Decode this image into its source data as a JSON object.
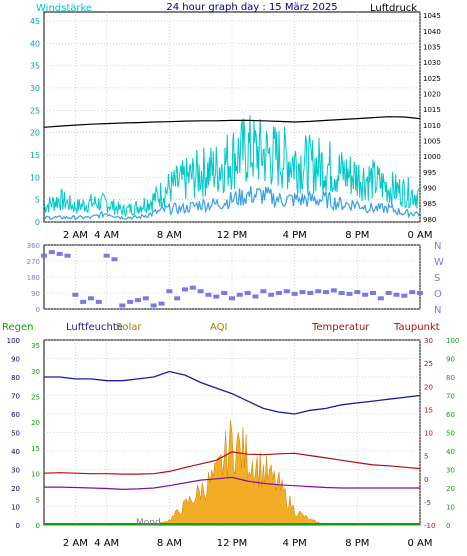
{
  "header": {
    "left_label": "Windstärke",
    "title": "24 hour graph day : 15 März 2025",
    "right_label": "Luftdruck"
  },
  "time_axis": {
    "labels": [
      "2 AM",
      "4 AM",
      "8 AM",
      "12 PM",
      "4 PM",
      "8 PM",
      "0 AM"
    ],
    "hours": [
      2,
      4,
      8,
      12,
      16,
      20,
      24
    ]
  },
  "colors": {
    "wind": "#00c8c8",
    "wind_avg": "#3aa0e8",
    "pressure": "#000000",
    "direction": "#7a7ae6",
    "humidity": "#1a1aa0",
    "temperature": "#b01010",
    "dewpoint": "#8010a0",
    "solar": "#f0a000",
    "rain": "#10a010",
    "aqi": "#a08000",
    "uv": "#708070",
    "grid": "#bbbbbb"
  },
  "legend": {
    "regen": "Regen",
    "luftfeuchte": "Luftfeuchte",
    "solar": "Solar",
    "aqi": "AQI",
    "temperatur": "Temperatur",
    "taupunkt": "Taupunkt",
    "moon": "Mond"
  },
  "chart_data": [
    {
      "type": "line",
      "name_ref": "wind-pressure",
      "y_left": {
        "label": "Windstärke",
        "ticks": [
          "0",
          "5",
          "10",
          "15",
          "20",
          "25",
          "30",
          "35",
          "40",
          "45"
        ],
        "ylim": [
          0,
          47
        ]
      },
      "y_right": {
        "label": "Luftdruck",
        "ticks": [
          "980",
          "985",
          "990",
          "995",
          "1000",
          "1005",
          "1010",
          "1015",
          "1020",
          "1025",
          "1030",
          "1035",
          "1040",
          "1045"
        ],
        "ylim": [
          979,
          1046
        ]
      },
      "x": [
        0,
        1,
        2,
        3,
        4,
        5,
        6,
        7,
        8,
        9,
        10,
        11,
        12,
        13,
        14,
        15,
        16,
        17,
        18,
        19,
        20,
        21,
        22,
        23,
        24
      ],
      "series": [
        {
          "key": "pressure",
          "values": [
            1009.2,
            1009.6,
            1009.9,
            1010.2,
            1010.4,
            1010.6,
            1010.7,
            1010.9,
            1011.0,
            1011.2,
            1011.3,
            1011.3,
            1011.4,
            1011.4,
            1011.3,
            1011.1,
            1010.9,
            1011.1,
            1011.4,
            1011.7,
            1012.0,
            1012.3,
            1012.6,
            1012.5,
            1012.0
          ]
        },
        {
          "key": "wind_gust",
          "values": [
            4,
            6,
            4,
            5,
            5,
            3,
            4,
            6,
            9,
            11,
            13,
            14,
            17,
            19,
            18,
            17,
            16,
            15,
            15,
            13,
            12,
            11,
            9,
            8,
            7
          ]
        },
        {
          "key": "wind_avg",
          "values": [
            1,
            1,
            1,
            1,
            2,
            1,
            1,
            2,
            3,
            3,
            4,
            4,
            5,
            6,
            6,
            5,
            5,
            5,
            5,
            4,
            4,
            3,
            3,
            2,
            2
          ]
        }
      ]
    },
    {
      "type": "scatter",
      "name_ref": "wind-direction",
      "y_left": {
        "ticks": [
          "0",
          "90",
          "180",
          "270",
          "360"
        ],
        "ylim": [
          0,
          360
        ]
      },
      "y_right": {
        "ticks": [
          "N",
          "O",
          "S",
          "W",
          "N"
        ]
      },
      "x": [
        0.0,
        0.5,
        1.0,
        1.5,
        2.0,
        2.5,
        3.0,
        3.5,
        4.0,
        4.5,
        5.0,
        5.5,
        6.0,
        6.5,
        7.0,
        7.5,
        8.0,
        8.5,
        9.0,
        9.5,
        10.0,
        10.5,
        11.0,
        11.5,
        12.0,
        12.5,
        13.0,
        13.5,
        14.0,
        14.5,
        15.0,
        15.5,
        16.0,
        16.5,
        17.0,
        17.5,
        18.0,
        18.5,
        19.0,
        19.5,
        20.0,
        20.5,
        21.0,
        21.5,
        22.0,
        22.5,
        23.0,
        23.5,
        24.0
      ],
      "values": [
        300,
        320,
        310,
        300,
        80,
        40,
        60,
        40,
        300,
        280,
        20,
        40,
        50,
        60,
        20,
        30,
        100,
        60,
        110,
        120,
        100,
        80,
        70,
        90,
        60,
        80,
        90,
        70,
        100,
        80,
        90,
        100,
        85,
        95,
        90,
        100,
        95,
        105,
        90,
        85,
        95,
        80,
        90,
        60,
        90,
        80,
        75,
        95,
        90
      ]
    },
    {
      "type": "line",
      "name_ref": "weather",
      "y_left_primary": {
        "label": "Regen",
        "ticks": [
          "0",
          "10",
          "20",
          "30",
          "40",
          "50",
          "60",
          "70",
          "80",
          "90",
          "100"
        ],
        "ylim": [
          0,
          100
        ]
      },
      "y_left_secondary": {
        "ticks": [
          "0",
          "5",
          "10",
          "15",
          "20",
          "25",
          "30",
          "35"
        ],
        "ylim": [
          0,
          36
        ]
      },
      "y_right_primary": {
        "label": "Temperatur",
        "ticks": [
          "-10",
          "-5",
          "0",
          "5",
          "10",
          "15",
          "20",
          "25",
          "30"
        ],
        "ylim": [
          -10,
          30
        ]
      },
      "y_right_secondary": {
        "ticks": [
          "0",
          "10",
          "20",
          "30",
          "40",
          "50",
          "60",
          "70",
          "80",
          "90",
          "100"
        ],
        "ylim": [
          0,
          100
        ]
      },
      "x": [
        0,
        1,
        2,
        3,
        4,
        5,
        6,
        7,
        8,
        9,
        10,
        11,
        12,
        13,
        14,
        15,
        16,
        17,
        18,
        19,
        20,
        21,
        22,
        23,
        24
      ],
      "series": [
        {
          "key": "humidity",
          "values": [
            80,
            80,
            79,
            79,
            78,
            78,
            79,
            80,
            83,
            81,
            77,
            74,
            71,
            67,
            63,
            61,
            60,
            62,
            63,
            65,
            66,
            67,
            68,
            69,
            70
          ]
        },
        {
          "key": "temperature",
          "values": [
            1.2,
            1.3,
            1.2,
            1.1,
            1.1,
            1.0,
            1.0,
            1.1,
            1.6,
            2.4,
            3.2,
            4.0,
            5.8,
            5.3,
            5.2,
            5.4,
            5.5,
            5.0,
            4.5,
            4.0,
            3.5,
            3.0,
            2.8,
            2.5,
            2.2
          ]
        },
        {
          "key": "dewpoint",
          "values": [
            -1.8,
            -1.8,
            -1.9,
            -2.0,
            -2.1,
            -2.3,
            -2.2,
            -2.0,
            -1.5,
            -0.9,
            -0.3,
            0.0,
            0.3,
            -0.5,
            -1.0,
            -1.3,
            -1.5,
            -1.7,
            -1.9,
            -2.0,
            -2.0,
            -2.0,
            -2.0,
            -2.0,
            -2.0
          ]
        },
        {
          "key": "solar",
          "values": [
            0,
            0,
            0,
            0,
            0,
            0,
            0,
            0,
            1,
            4,
            7,
            10,
            17,
            14,
            11,
            8,
            3,
            1,
            0,
            0,
            0,
            0,
            0,
            0,
            0
          ]
        }
      ]
    }
  ]
}
